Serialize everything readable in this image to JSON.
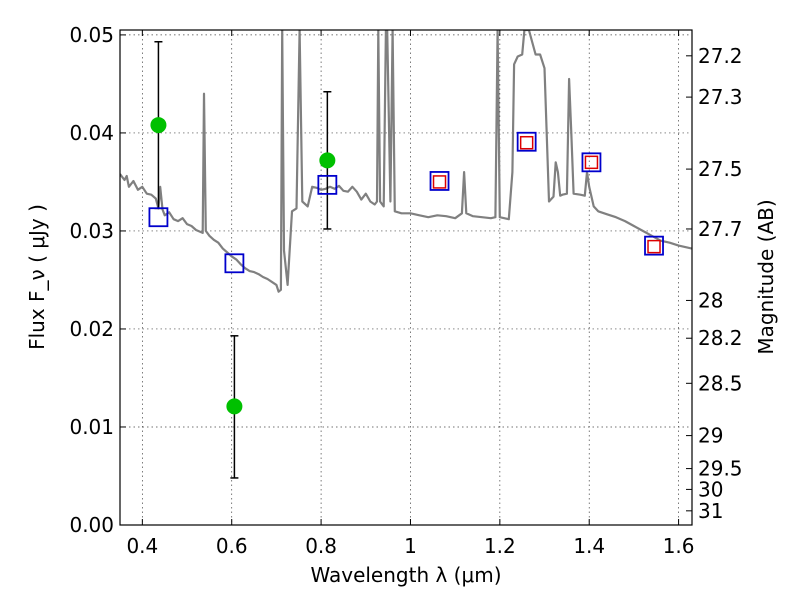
{
  "chart_data": {
    "type": "scatter",
    "xlabel": "Wavelength  λ (μm)",
    "ylabel": "Flux  F_ν  ( μJy )",
    "y2label": "Magnitude (AB)",
    "xlim": [
      0.35,
      1.63
    ],
    "ylim": [
      0.0,
      0.0505
    ],
    "grid": true,
    "x_ticks": [
      {
        "v": 0.4,
        "label": "0.4"
      },
      {
        "v": 0.6,
        "label": "0.6"
      },
      {
        "v": 0.8,
        "label": "0.8"
      },
      {
        "v": 1.0,
        "label": "1"
      },
      {
        "v": 1.2,
        "label": "1.2"
      },
      {
        "v": 1.4,
        "label": "1.4"
      },
      {
        "v": 1.6,
        "label": "1.6"
      }
    ],
    "y_ticks": [
      {
        "v": 0.0,
        "label": "0.00"
      },
      {
        "v": 0.01,
        "label": "0.01"
      },
      {
        "v": 0.02,
        "label": "0.02"
      },
      {
        "v": 0.03,
        "label": "0.03"
      },
      {
        "v": 0.04,
        "label": "0.04"
      },
      {
        "v": 0.05,
        "label": "0.05"
      }
    ],
    "y2_ticks": [
      {
        "mag": 27.2,
        "label": "27.2"
      },
      {
        "mag": 27.3,
        "label": "27.3"
      },
      {
        "mag": 27.5,
        "label": "27.5"
      },
      {
        "mag": 27.7,
        "label": "27.7"
      },
      {
        "mag": 28.0,
        "label": "28"
      },
      {
        "mag": 28.2,
        "label": "28.2"
      },
      {
        "mag": 28.5,
        "label": "28.5"
      },
      {
        "mag": 29.0,
        "label": "29"
      },
      {
        "mag": 29.5,
        "label": "29.5"
      },
      {
        "mag": 30.0,
        "label": "30"
      },
      {
        "mag": 31.0,
        "label": "31"
      }
    ],
    "sed_model": {
      "color": "#808080",
      "points": [
        [
          0.35,
          0.0358
        ],
        [
          0.36,
          0.0352
        ],
        [
          0.365,
          0.0356
        ],
        [
          0.37,
          0.0345
        ],
        [
          0.38,
          0.0351
        ],
        [
          0.39,
          0.0342
        ],
        [
          0.4,
          0.0345
        ],
        [
          0.41,
          0.0338
        ],
        [
          0.42,
          0.0337
        ],
        [
          0.43,
          0.0333
        ],
        [
          0.436,
          0.0323
        ],
        [
          0.44,
          0.0345
        ],
        [
          0.445,
          0.0322
        ],
        [
          0.45,
          0.0316
        ],
        [
          0.46,
          0.0319
        ],
        [
          0.47,
          0.0312
        ],
        [
          0.48,
          0.031
        ],
        [
          0.49,
          0.0313
        ],
        [
          0.5,
          0.0307
        ],
        [
          0.51,
          0.0305
        ],
        [
          0.52,
          0.0301
        ],
        [
          0.53,
          0.0299
        ],
        [
          0.535,
          0.0298
        ],
        [
          0.538,
          0.044
        ],
        [
          0.542,
          0.03
        ],
        [
          0.55,
          0.0295
        ],
        [
          0.56,
          0.0291
        ],
        [
          0.57,
          0.0288
        ],
        [
          0.58,
          0.0282
        ],
        [
          0.59,
          0.0278
        ],
        [
          0.6,
          0.0274
        ],
        [
          0.61,
          0.0271
        ],
        [
          0.62,
          0.0266
        ],
        [
          0.63,
          0.0262
        ],
        [
          0.64,
          0.0259
        ],
        [
          0.65,
          0.0258
        ],
        [
          0.66,
          0.0256
        ],
        [
          0.67,
          0.0253
        ],
        [
          0.68,
          0.0251
        ],
        [
          0.69,
          0.0248
        ],
        [
          0.7,
          0.0245
        ],
        [
          0.705,
          0.0238
        ],
        [
          0.71,
          0.024
        ],
        [
          0.713,
          0.0505
        ],
        [
          0.717,
          0.028
        ],
        [
          0.725,
          0.0245
        ],
        [
          0.735,
          0.032
        ],
        [
          0.745,
          0.0323
        ],
        [
          0.752,
          0.0505
        ],
        [
          0.758,
          0.033
        ],
        [
          0.77,
          0.0325
        ],
        [
          0.78,
          0.0345
        ],
        [
          0.79,
          0.0344
        ],
        [
          0.8,
          0.0342
        ],
        [
          0.81,
          0.0343
        ],
        [
          0.82,
          0.0345
        ],
        [
          0.83,
          0.0343
        ],
        [
          0.84,
          0.0346
        ],
        [
          0.85,
          0.0341
        ],
        [
          0.86,
          0.034
        ],
        [
          0.87,
          0.0345
        ],
        [
          0.88,
          0.034
        ],
        [
          0.89,
          0.0332
        ],
        [
          0.9,
          0.0338
        ],
        [
          0.91,
          0.033
        ],
        [
          0.92,
          0.0327
        ],
        [
          0.925,
          0.033
        ],
        [
          0.928,
          0.0505
        ],
        [
          0.932,
          0.033
        ],
        [
          0.94,
          0.0325
        ],
        [
          0.945,
          0.0505
        ],
        [
          0.948,
          0.0505
        ],
        [
          0.955,
          0.033
        ],
        [
          0.96,
          0.0505
        ],
        [
          0.965,
          0.032
        ],
        [
          0.98,
          0.0318
        ],
        [
          1.0,
          0.0318
        ],
        [
          1.02,
          0.0316
        ],
        [
          1.04,
          0.0314
        ],
        [
          1.06,
          0.0316
        ],
        [
          1.08,
          0.0315
        ],
        [
          1.1,
          0.0313
        ],
        [
          1.115,
          0.0318
        ],
        [
          1.12,
          0.036
        ],
        [
          1.125,
          0.0318
        ],
        [
          1.14,
          0.0315
        ],
        [
          1.16,
          0.0314
        ],
        [
          1.18,
          0.0313
        ],
        [
          1.19,
          0.0314
        ],
        [
          1.195,
          0.0505
        ],
        [
          1.2,
          0.0314
        ],
        [
          1.22,
          0.0312
        ],
        [
          1.228,
          0.036
        ],
        [
          1.232,
          0.047
        ],
        [
          1.24,
          0.0478
        ],
        [
          1.25,
          0.048
        ],
        [
          1.255,
          0.0505
        ],
        [
          1.265,
          0.0505
        ],
        [
          1.28,
          0.048
        ],
        [
          1.29,
          0.048
        ],
        [
          1.3,
          0.0466
        ],
        [
          1.31,
          0.033
        ],
        [
          1.32,
          0.0335
        ],
        [
          1.325,
          0.037
        ],
        [
          1.33,
          0.036
        ],
        [
          1.335,
          0.0336
        ],
        [
          1.34,
          0.0337
        ],
        [
          1.35,
          0.0338
        ],
        [
          1.355,
          0.0455
        ],
        [
          1.36,
          0.04
        ],
        [
          1.365,
          0.0338
        ],
        [
          1.38,
          0.0337
        ],
        [
          1.39,
          0.0336
        ],
        [
          1.395,
          0.036
        ],
        [
          1.4,
          0.0345
        ],
        [
          1.41,
          0.0325
        ],
        [
          1.42,
          0.032
        ],
        [
          1.44,
          0.0317
        ],
        [
          1.46,
          0.0314
        ],
        [
          1.48,
          0.031
        ],
        [
          1.5,
          0.0305
        ],
        [
          1.52,
          0.03
        ],
        [
          1.54,
          0.0295
        ],
        [
          1.56,
          0.029
        ],
        [
          1.58,
          0.0288
        ],
        [
          1.6,
          0.0285
        ],
        [
          1.62,
          0.0283
        ],
        [
          1.63,
          0.0282
        ]
      ]
    },
    "series": [
      {
        "marker": "circle",
        "color": "#00c000",
        "points": [
          {
            "x": 0.436,
            "y": 0.0408,
            "ylo": 0.0323,
            "yhi": 0.0493
          },
          {
            "x": 0.606,
            "y": 0.0121,
            "ylo": 0.0048,
            "yhi": 0.0193
          },
          {
            "x": 0.814,
            "y": 0.0372,
            "ylo": 0.0302,
            "yhi": 0.0442
          }
        ]
      },
      {
        "marker": "square-open",
        "color": "#0000cc",
        "points": [
          {
            "x": 0.436,
            "y": 0.0314
          },
          {
            "x": 0.606,
            "y": 0.0267
          },
          {
            "x": 0.814,
            "y": 0.0347
          },
          {
            "x": 1.065,
            "y": 0.0351
          },
          {
            "x": 1.26,
            "y": 0.0391
          },
          {
            "x": 1.405,
            "y": 0.037
          },
          {
            "x": 1.545,
            "y": 0.0285
          }
        ]
      },
      {
        "marker": "square-open-small",
        "color": "#dd0000",
        "points": [
          {
            "x": 1.065,
            "y": 0.035
          },
          {
            "x": 1.26,
            "y": 0.039
          },
          {
            "x": 1.405,
            "y": 0.037
          },
          {
            "x": 1.545,
            "y": 0.0284
          }
        ]
      }
    ]
  }
}
